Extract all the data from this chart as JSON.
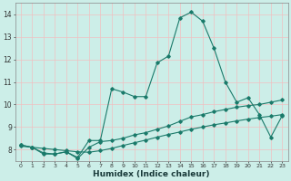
{
  "title": "",
  "xlabel": "Humidex (Indice chaleur)",
  "ylabel": "",
  "background_color": "#cceee8",
  "grid_color": "#f0c0c0",
  "line_color": "#1a7a6a",
  "xlim": [
    -0.5,
    23.5
  ],
  "ylim": [
    7.5,
    14.5
  ],
  "yticks": [
    8,
    9,
    10,
    11,
    12,
    13,
    14
  ],
  "xtick_labels": [
    "0",
    "1",
    "2",
    "3",
    "4",
    "5",
    "6",
    "7",
    "8",
    "9",
    "10",
    "11",
    "12",
    "13",
    "14",
    "15",
    "16",
    "17",
    "18",
    "19",
    "20",
    "21",
    "22",
    "23"
  ],
  "series1_x": [
    0,
    1,
    2,
    3,
    4,
    5,
    6,
    7,
    8,
    9,
    10,
    11,
    12,
    13,
    14,
    15,
    16,
    17,
    18,
    19,
    20,
    21,
    22,
    23
  ],
  "series1_y": [
    8.2,
    8.1,
    7.8,
    7.8,
    7.9,
    7.65,
    8.4,
    8.4,
    10.7,
    10.55,
    10.35,
    10.35,
    11.85,
    12.15,
    13.85,
    14.1,
    13.7,
    12.5,
    11.0,
    10.1,
    10.3,
    9.55,
    8.55,
    9.5
  ],
  "series2_x": [
    0,
    1,
    2,
    3,
    4,
    5,
    6,
    7,
    8,
    9,
    10,
    11,
    12,
    13,
    14,
    15,
    16,
    17,
    18,
    19,
    20,
    21,
    22,
    23
  ],
  "series2_y": [
    8.2,
    8.1,
    7.85,
    7.8,
    7.9,
    7.6,
    8.1,
    8.35,
    8.4,
    8.5,
    8.65,
    8.75,
    8.9,
    9.05,
    9.25,
    9.45,
    9.55,
    9.68,
    9.78,
    9.88,
    9.95,
    10.0,
    10.1,
    10.2
  ],
  "series3_x": [
    0,
    1,
    2,
    3,
    4,
    5,
    6,
    7,
    8,
    9,
    10,
    11,
    12,
    13,
    14,
    15,
    16,
    17,
    18,
    19,
    20,
    21,
    22,
    23
  ],
  "series3_y": [
    8.15,
    8.1,
    8.05,
    8.0,
    7.95,
    7.9,
    7.88,
    7.95,
    8.05,
    8.18,
    8.3,
    8.42,
    8.55,
    8.67,
    8.78,
    8.9,
    9.0,
    9.1,
    9.18,
    9.27,
    9.35,
    9.42,
    9.48,
    9.55
  ]
}
